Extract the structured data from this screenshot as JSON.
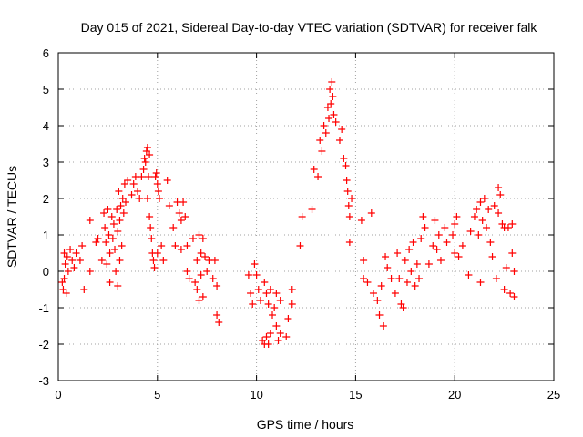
{
  "chart_data": {
    "type": "scatter",
    "title": "Day 015 of 2021, Sidereal Day-to-day VTEC variation (SDTVAR) for receiver falk",
    "xlabel": "GPS time / hours",
    "ylabel": "SDTVAR / TECUs",
    "xlim": [
      0,
      25
    ],
    "ylim": [
      -3,
      6
    ],
    "x_ticks": [
      0,
      5,
      10,
      15,
      20,
      25
    ],
    "y_ticks": [
      -3,
      -2,
      -1,
      0,
      1,
      2,
      3,
      4,
      5,
      6
    ],
    "grid": true,
    "marker": "+",
    "color": "#ff0000",
    "series": [
      {
        "name": "SDTVAR",
        "points": [
          [
            0.2,
            -0.3
          ],
          [
            0.25,
            -0.5
          ],
          [
            0.3,
            0.5
          ],
          [
            0.3,
            -0.2
          ],
          [
            0.35,
            0.2
          ],
          [
            0.4,
            -0.6
          ],
          [
            0.45,
            0.4
          ],
          [
            0.5,
            0.0
          ],
          [
            0.6,
            0.6
          ],
          [
            0.7,
            0.3
          ],
          [
            0.8,
            0.1
          ],
          [
            0.9,
            0.5
          ],
          [
            1.1,
            0.3
          ],
          [
            1.2,
            0.7
          ],
          [
            1.3,
            -0.5
          ],
          [
            1.6,
            1.4
          ],
          [
            1.6,
            0.0
          ],
          [
            1.9,
            0.8
          ],
          [
            2.0,
            0.9
          ],
          [
            2.2,
            0.3
          ],
          [
            2.3,
            1.6
          ],
          [
            2.35,
            1.2
          ],
          [
            2.4,
            0.8
          ],
          [
            2.45,
            0.2
          ],
          [
            2.5,
            1.7
          ],
          [
            2.55,
            1.0
          ],
          [
            2.6,
            0.5
          ],
          [
            2.6,
            -0.3
          ],
          [
            2.7,
            1.5
          ],
          [
            2.75,
            0.9
          ],
          [
            2.8,
            1.3
          ],
          [
            2.85,
            0.6
          ],
          [
            2.9,
            0.0
          ],
          [
            2.95,
            1.7
          ],
          [
            3.0,
            1.1
          ],
          [
            3.0,
            -0.4
          ],
          [
            3.05,
            2.2
          ],
          [
            3.1,
            1.4
          ],
          [
            3.1,
            0.3
          ],
          [
            3.15,
            1.8
          ],
          [
            3.2,
            0.7
          ],
          [
            3.25,
            2.0
          ],
          [
            3.3,
            1.6
          ],
          [
            3.35,
            2.4
          ],
          [
            3.4,
            1.9
          ],
          [
            3.5,
            2.5
          ],
          [
            3.7,
            2.1
          ],
          [
            3.8,
            2.4
          ],
          [
            3.9,
            2.6
          ],
          [
            4.0,
            2.2
          ],
          [
            4.1,
            2.0
          ],
          [
            4.2,
            2.6
          ],
          [
            4.3,
            2.8
          ],
          [
            4.35,
            3.1
          ],
          [
            4.4,
            3.0
          ],
          [
            4.45,
            3.3
          ],
          [
            4.5,
            3.4
          ],
          [
            4.5,
            2.0
          ],
          [
            4.55,
            2.6
          ],
          [
            4.6,
            3.2
          ],
          [
            4.6,
            1.5
          ],
          [
            4.65,
            1.2
          ],
          [
            4.7,
            0.9
          ],
          [
            4.75,
            0.5
          ],
          [
            4.8,
            0.3
          ],
          [
            4.85,
            0.1
          ],
          [
            4.9,
            2.6
          ],
          [
            4.95,
            2.7
          ],
          [
            5.0,
            2.4
          ],
          [
            5.0,
            0.5
          ],
          [
            5.05,
            2.2
          ],
          [
            5.1,
            2.0
          ],
          [
            5.2,
            0.7
          ],
          [
            5.3,
            0.3
          ],
          [
            5.5,
            2.5
          ],
          [
            5.6,
            1.8
          ],
          [
            5.8,
            1.2
          ],
          [
            5.9,
            0.7
          ],
          [
            6.0,
            1.9
          ],
          [
            6.1,
            1.6
          ],
          [
            6.2,
            1.4
          ],
          [
            6.2,
            0.6
          ],
          [
            6.3,
            1.9
          ],
          [
            6.4,
            1.5
          ],
          [
            6.5,
            0.7
          ],
          [
            6.5,
            0.0
          ],
          [
            6.6,
            -0.2
          ],
          [
            6.8,
            0.9
          ],
          [
            6.9,
            -0.3
          ],
          [
            7.0,
            0.3
          ],
          [
            7.0,
            -0.5
          ],
          [
            7.1,
            1.0
          ],
          [
            7.1,
            -0.8
          ],
          [
            7.2,
            0.5
          ],
          [
            7.2,
            -0.1
          ],
          [
            7.3,
            0.9
          ],
          [
            7.3,
            -0.7
          ],
          [
            7.4,
            0.4
          ],
          [
            7.5,
            0.0
          ],
          [
            7.6,
            0.3
          ],
          [
            7.8,
            -0.2
          ],
          [
            7.9,
            0.3
          ],
          [
            8.0,
            -1.2
          ],
          [
            8.0,
            -0.4
          ],
          [
            8.1,
            -1.4
          ],
          [
            9.6,
            -0.1
          ],
          [
            9.7,
            -0.6
          ],
          [
            9.8,
            -0.9
          ],
          [
            9.9,
            0.2
          ],
          [
            10.0,
            -0.1
          ],
          [
            10.1,
            -0.5
          ],
          [
            10.2,
            -0.8
          ],
          [
            10.3,
            -1.9
          ],
          [
            10.4,
            -2.0
          ],
          [
            10.4,
            -0.3
          ],
          [
            10.5,
            -1.8
          ],
          [
            10.5,
            -0.6
          ],
          [
            10.6,
            -2.0
          ],
          [
            10.6,
            -0.9
          ],
          [
            10.7,
            -1.7
          ],
          [
            10.7,
            -0.5
          ],
          [
            10.8,
            -1.2
          ],
          [
            10.9,
            -1.0
          ],
          [
            11.0,
            -1.5
          ],
          [
            11.0,
            -0.6
          ],
          [
            11.1,
            -1.9
          ],
          [
            11.2,
            -1.7
          ],
          [
            11.2,
            -0.8
          ],
          [
            11.5,
            -1.8
          ],
          [
            11.6,
            -1.3
          ],
          [
            11.8,
            -0.9
          ],
          [
            11.8,
            -0.5
          ],
          [
            12.2,
            0.7
          ],
          [
            12.3,
            1.5
          ],
          [
            12.8,
            1.7
          ],
          [
            12.9,
            2.8
          ],
          [
            13.1,
            2.6
          ],
          [
            13.2,
            3.6
          ],
          [
            13.3,
            3.3
          ],
          [
            13.4,
            4.0
          ],
          [
            13.5,
            3.8
          ],
          [
            13.6,
            4.5
          ],
          [
            13.65,
            4.2
          ],
          [
            13.7,
            5.0
          ],
          [
            13.75,
            4.6
          ],
          [
            13.8,
            5.2
          ],
          [
            13.85,
            4.8
          ],
          [
            13.9,
            4.3
          ],
          [
            14.0,
            4.1
          ],
          [
            14.2,
            3.6
          ],
          [
            14.3,
            3.9
          ],
          [
            14.4,
            3.1
          ],
          [
            14.5,
            2.9
          ],
          [
            14.55,
            2.5
          ],
          [
            14.6,
            2.2
          ],
          [
            14.65,
            1.8
          ],
          [
            14.7,
            1.5
          ],
          [
            14.7,
            0.8
          ],
          [
            14.8,
            2.0
          ],
          [
            15.3,
            1.4
          ],
          [
            15.4,
            0.3
          ],
          [
            15.4,
            -0.2
          ],
          [
            15.6,
            -0.3
          ],
          [
            15.8,
            1.6
          ],
          [
            15.9,
            -0.6
          ],
          [
            16.1,
            -0.8
          ],
          [
            16.2,
            -1.2
          ],
          [
            16.3,
            -0.4
          ],
          [
            16.4,
            -1.5
          ],
          [
            16.5,
            0.4
          ],
          [
            16.6,
            0.1
          ],
          [
            16.8,
            -0.2
          ],
          [
            17.0,
            -0.6
          ],
          [
            17.1,
            0.5
          ],
          [
            17.2,
            -0.2
          ],
          [
            17.3,
            -0.9
          ],
          [
            17.4,
            -1.0
          ],
          [
            17.5,
            0.3
          ],
          [
            17.6,
            -0.3
          ],
          [
            17.7,
            0.6
          ],
          [
            17.8,
            0.0
          ],
          [
            17.9,
            0.8
          ],
          [
            18.0,
            -0.4
          ],
          [
            18.1,
            0.2
          ],
          [
            18.2,
            -0.2
          ],
          [
            18.3,
            0.9
          ],
          [
            18.4,
            1.5
          ],
          [
            18.5,
            1.2
          ],
          [
            18.7,
            0.2
          ],
          [
            18.9,
            0.7
          ],
          [
            19.0,
            1.4
          ],
          [
            19.1,
            0.6
          ],
          [
            19.2,
            1.0
          ],
          [
            19.3,
            0.3
          ],
          [
            19.5,
            1.2
          ],
          [
            19.6,
            0.8
          ],
          [
            19.9,
            1.0
          ],
          [
            20.0,
            1.3
          ],
          [
            20.0,
            0.5
          ],
          [
            20.1,
            1.5
          ],
          [
            20.2,
            0.4
          ],
          [
            20.4,
            0.7
          ],
          [
            20.7,
            -0.1
          ],
          [
            20.8,
            1.1
          ],
          [
            21.0,
            1.5
          ],
          [
            21.1,
            1.7
          ],
          [
            21.2,
            1.0
          ],
          [
            21.3,
            1.9
          ],
          [
            21.3,
            -0.3
          ],
          [
            21.4,
            1.4
          ],
          [
            21.5,
            2.0
          ],
          [
            21.6,
            1.2
          ],
          [
            21.7,
            1.7
          ],
          [
            21.8,
            0.8
          ],
          [
            21.9,
            0.4
          ],
          [
            22.0,
            1.8
          ],
          [
            22.1,
            -0.2
          ],
          [
            22.2,
            1.6
          ],
          [
            22.2,
            2.3
          ],
          [
            22.3,
            2.1
          ],
          [
            22.4,
            1.3
          ],
          [
            22.5,
            -0.5
          ],
          [
            22.5,
            1.2
          ],
          [
            22.6,
            0.1
          ],
          [
            22.7,
            1.2
          ],
          [
            22.8,
            -0.6
          ],
          [
            22.9,
            0.5
          ],
          [
            22.9,
            1.3
          ],
          [
            23.0,
            -0.7
          ],
          [
            23.0,
            0.0
          ]
        ]
      }
    ]
  }
}
